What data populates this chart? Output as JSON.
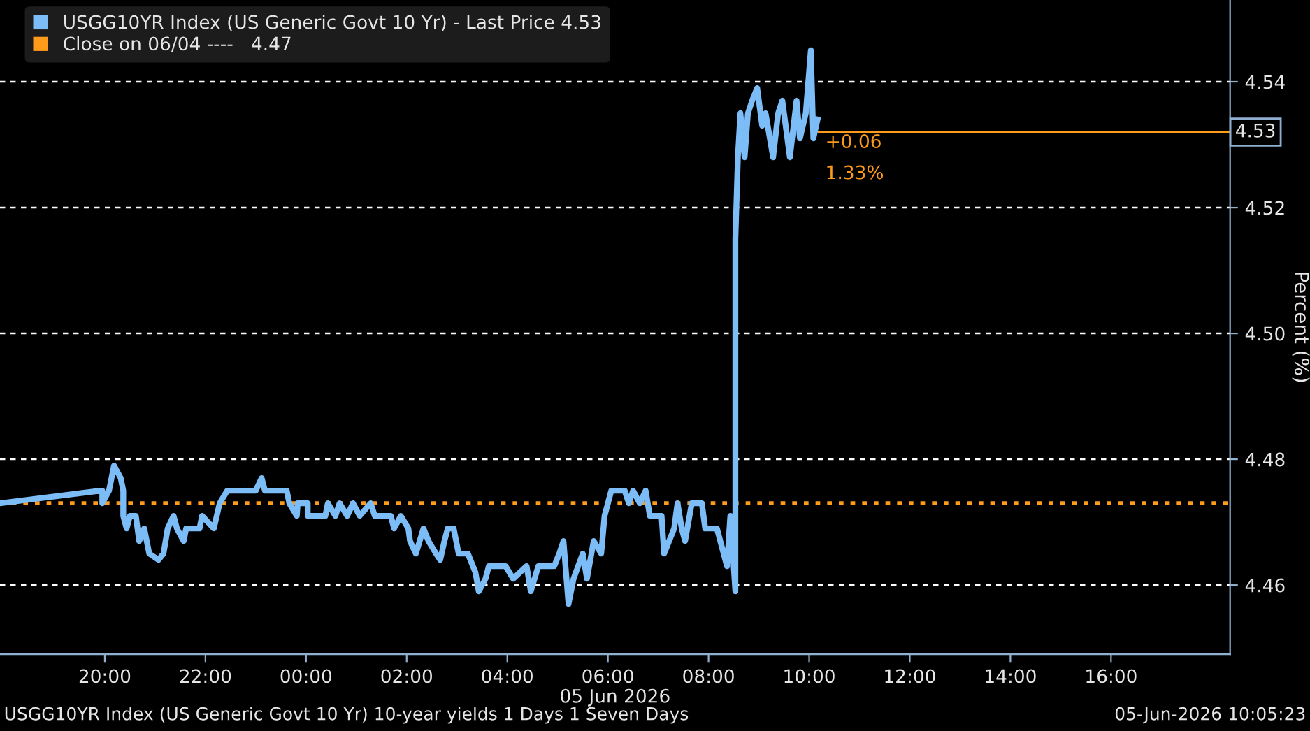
{
  "chart_data": {
    "type": "line",
    "xlabel": "05 Jun 2026",
    "ylabel": "Percent (%)",
    "series": [
      {
        "name": "USGG10YR Index (US Generic Govt 10 Yr) - Last Price 4.53",
        "color": "#7dbdf7",
        "x": [
          "2026-06-04T17:55",
          "2026-06-04T19:55",
          "2026-06-04T19:57",
          "2026-06-04T19:57",
          "2026-06-04T20:05",
          "2026-06-04T20:08",
          "2026-06-04T20:11",
          "2026-06-04T20:19",
          "2026-06-04T20:22",
          "2026-06-04T20:22",
          "2026-06-04T20:26",
          "2026-06-04T20:30",
          "2026-06-04T20:37",
          "2026-06-04T20:41",
          "2026-06-04T20:47",
          "2026-06-04T20:53",
          "2026-06-04T21:04",
          "2026-06-04T21:10",
          "2026-06-04T21:15",
          "2026-06-04T21:22",
          "2026-06-04T21:26",
          "2026-06-04T21:34",
          "2026-06-04T21:37",
          "2026-06-04T21:53",
          "2026-06-04T21:56",
          "2026-06-04T22:10",
          "2026-06-04T22:17",
          "2026-06-04T22:26",
          "2026-06-04T23:00",
          "2026-06-04T23:07",
          "2026-06-04T23:11",
          "2026-06-04T23:37",
          "2026-06-04T23:40",
          "2026-06-04T23:49",
          "2026-06-04T23:50",
          "2026-06-05T00:02",
          "2026-06-05T00:02",
          "2026-06-05T00:23",
          "2026-06-05T00:26",
          "2026-06-05T00:35",
          "2026-06-05T00:40",
          "2026-06-05T00:49",
          "2026-06-05T00:56",
          "2026-06-05T01:04",
          "2026-06-05T01:17",
          "2026-06-05T01:22",
          "2026-06-05T01:41",
          "2026-06-05T01:45",
          "2026-06-05T01:53",
          "2026-06-05T02:02",
          "2026-06-05T02:04",
          "2026-06-05T02:11",
          "2026-06-05T02:20",
          "2026-06-05T02:26",
          "2026-06-05T02:35",
          "2026-06-05T02:40",
          "2026-06-05T02:45",
          "2026-06-05T02:49",
          "2026-06-05T02:56",
          "2026-06-05T03:02",
          "2026-06-05T03:13",
          "2026-06-05T03:22",
          "2026-06-05T03:26",
          "2026-06-05T03:34",
          "2026-06-05T03:38",
          "2026-06-05T03:58",
          "2026-06-05T04:07",
          "2026-06-05T04:23",
          "2026-06-05T04:28",
          "2026-06-05T04:37",
          "2026-06-05T04:56",
          "2026-06-05T05:02",
          "2026-06-05T05:07",
          "2026-06-05T05:13",
          "2026-06-05T05:19",
          "2026-06-05T05:30",
          "2026-06-05T05:35",
          "2026-06-05T05:43",
          "2026-06-05T05:52",
          "2026-06-05T05:56",
          "2026-06-05T06:04",
          "2026-06-05T06:20",
          "2026-06-05T06:25",
          "2026-06-05T06:30",
          "2026-06-05T06:38",
          "2026-06-05T06:45",
          "2026-06-05T06:50",
          "2026-06-05T07:04",
          "2026-06-05T07:07",
          "2026-06-05T07:19",
          "2026-06-05T07:23",
          "2026-06-05T07:28",
          "2026-06-05T07:32",
          "2026-06-05T07:40",
          "2026-06-05T07:52",
          "2026-06-05T07:56",
          "2026-06-05T08:10",
          "2026-06-05T08:22",
          "2026-06-05T08:26",
          "2026-06-05T08:32",
          "2026-06-05T08:32",
          "2026-06-05T08:35",
          "2026-06-05T08:38",
          "2026-06-05T08:43",
          "2026-06-05T08:47",
          "2026-06-05T08:52",
          "2026-06-05T08:58",
          "2026-06-05T09:04",
          "2026-06-05T09:08",
          "2026-06-05T09:17",
          "2026-06-05T09:23",
          "2026-06-05T09:28",
          "2026-06-05T09:37",
          "2026-06-05T09:45",
          "2026-06-05T09:49",
          "2026-06-05T09:56",
          "2026-06-05T10:02",
          "2026-06-05T10:05",
          "2026-06-05T10:10"
        ],
        "values": [
          4.473,
          4.475,
          4.475,
          4.473,
          4.475,
          4.477,
          4.479,
          4.477,
          4.475,
          4.471,
          4.469,
          4.471,
          4.471,
          4.467,
          4.469,
          4.465,
          4.464,
          4.465,
          4.469,
          4.471,
          4.469,
          4.467,
          4.469,
          4.469,
          4.471,
          4.469,
          4.473,
          4.475,
          4.475,
          4.477,
          4.475,
          4.475,
          4.473,
          4.471,
          4.473,
          4.473,
          4.471,
          4.471,
          4.473,
          4.471,
          4.473,
          4.471,
          4.473,
          4.471,
          4.473,
          4.471,
          4.471,
          4.469,
          4.471,
          4.469,
          4.467,
          4.465,
          4.469,
          4.467,
          4.465,
          4.464,
          4.467,
          4.469,
          4.469,
          4.465,
          4.465,
          4.462,
          4.459,
          4.461,
          4.463,
          4.463,
          4.461,
          4.463,
          4.459,
          4.463,
          4.463,
          4.465,
          4.467,
          4.457,
          4.461,
          4.465,
          4.461,
          4.467,
          4.465,
          4.471,
          4.475,
          4.475,
          4.473,
          4.475,
          4.473,
          4.475,
          4.471,
          4.471,
          4.465,
          4.469,
          4.473,
          4.469,
          4.467,
          4.473,
          4.473,
          4.469,
          4.469,
          4.463,
          4.471,
          4.459,
          4.515,
          4.528,
          4.535,
          4.528,
          4.535,
          4.537,
          4.539,
          4.533,
          4.535,
          4.528,
          4.535,
          4.537,
          4.528,
          4.537,
          4.531,
          4.535,
          4.545,
          4.531,
          4.534
        ]
      }
    ],
    "xlim": [
      "2026-06-04T17:55",
      "2026-06-05T18:22"
    ],
    "ylim": [
      4.449,
      4.553
    ],
    "xticks": [
      {
        "value": "2026-06-04T20:00",
        "label": "20:00"
      },
      {
        "value": "2026-06-04T22:00",
        "label": "22:00"
      },
      {
        "value": "2026-06-05T00:00",
        "label": "00:00"
      },
      {
        "value": "2026-06-05T02:00",
        "label": "02:00"
      },
      {
        "value": "2026-06-05T04:00",
        "label": "04:00"
      },
      {
        "value": "2026-06-05T06:00",
        "label": "06:00"
      },
      {
        "value": "2026-06-05T08:00",
        "label": "08:00"
      },
      {
        "value": "2026-06-05T10:00",
        "label": "10:00"
      },
      {
        "value": "2026-06-05T12:00",
        "label": "12:00"
      },
      {
        "value": "2026-06-05T14:00",
        "label": "14:00"
      },
      {
        "value": "2026-06-05T16:00",
        "label": "16:00"
      }
    ],
    "yticks": [
      {
        "value": 4.46,
        "label": "4.46"
      },
      {
        "value": 4.48,
        "label": "4.48"
      },
      {
        "value": 4.5,
        "label": "4.50"
      },
      {
        "value": 4.52,
        "label": "4.52"
      },
      {
        "value": 4.54,
        "label": "4.54"
      }
    ],
    "grid": "y",
    "legend": "top left",
    "line_style": "solid",
    "marker": "none",
    "ref_lines": [
      {
        "axis": "y",
        "value": 4.473,
        "label": "Close on 06/04 ----   4.47",
        "color": "#ff9b1a",
        "line_style": "dotted"
      },
      {
        "axis": "y",
        "value": 4.532,
        "label": "4.53",
        "color": "#ff9b1a",
        "line_style": "solid"
      }
    ],
    "annotations": [
      "+0.06",
      "1.33%",
      "USGG10YR Index (US Generic Govt 10 Yr) 10-year yields 1 Days 1 Seven Days",
      "05-Jun-2026 10:05:23"
    ]
  }
}
